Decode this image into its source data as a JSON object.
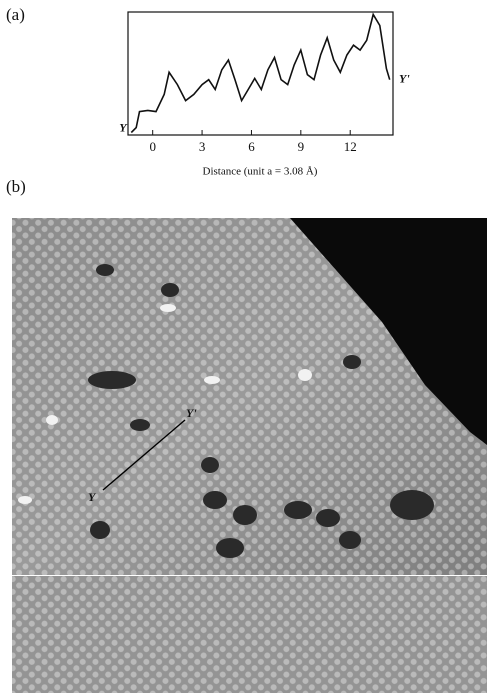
{
  "panel_labels": [
    "(a)",
    "(b)"
  ],
  "chart_data": {
    "type": "line",
    "xlabel": "Distance (unit a = 3.08 Å)",
    "annotations": [
      "Y",
      "Y'"
    ],
    "x": [
      -1.3,
      -1.0,
      -0.8,
      -0.3,
      0.2,
      0.7,
      1.0,
      1.5,
      2.0,
      2.5,
      3.0,
      3.4,
      3.8,
      4.2,
      4.6,
      5.0,
      5.4,
      5.8,
      6.2,
      6.6,
      7.0,
      7.4,
      7.8,
      8.2,
      8.6,
      9.0,
      9.4,
      9.8,
      10.2,
      10.6,
      11.0,
      11.4,
      11.8,
      12.2,
      12.6,
      13.0,
      13.4,
      13.8,
      14.2,
      14.4
    ],
    "values": [
      2,
      6,
      19,
      20,
      19,
      33,
      51,
      41,
      28,
      33,
      41,
      45,
      37,
      53,
      61,
      45,
      28,
      37,
      46,
      37,
      53,
      63,
      45,
      41,
      57,
      69,
      49,
      45,
      65,
      79,
      61,
      51,
      65,
      73,
      69,
      77,
      98,
      89,
      54,
      45
    ],
    "color": "#111111",
    "xlim": [
      -1.5,
      14.6
    ],
    "ylim": [
      0,
      100
    ],
    "xticks": [
      0,
      3,
      6,
      9,
      12
    ]
  },
  "image": {
    "labels": [
      "Y",
      "Y'"
    ]
  }
}
